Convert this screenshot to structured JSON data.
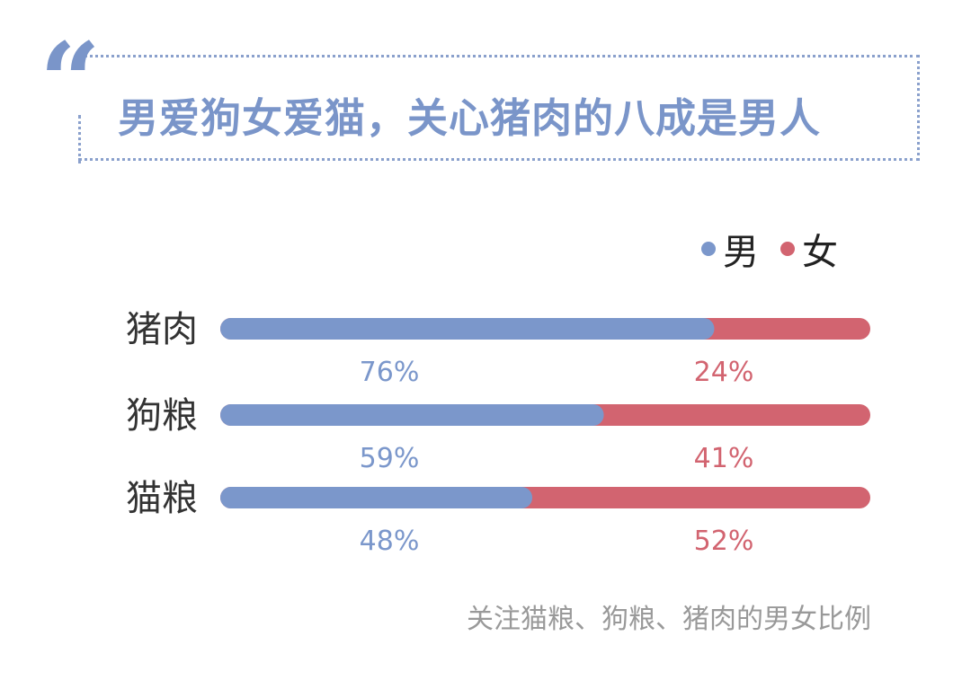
{
  "title": "男爱狗女爱猫，关心猪肉的八成是男人",
  "quote_mark": "“",
  "legend": [
    {
      "label": "男",
      "color": "#7b97cb"
    },
    {
      "label": "女",
      "color": "#d26470"
    }
  ],
  "footnote": "关注猫粮、狗粮、猪肉的男女比例",
  "chart_data": {
    "type": "bar",
    "stacked": true,
    "orientation": "horizontal",
    "categories": [
      "猪肉",
      "狗粮",
      "猫粮"
    ],
    "series": [
      {
        "name": "男",
        "values": [
          76,
          59,
          48
        ],
        "labels": [
          "76%",
          "59%",
          "48%"
        ],
        "color": "#7b97cb"
      },
      {
        "name": "女",
        "values": [
          24,
          41,
          52
        ],
        "labels": [
          "24%",
          "41%",
          "52%"
        ],
        "color": "#d26470"
      }
    ],
    "xlim": [
      0,
      100
    ],
    "grid": false,
    "legend_placement": "top-right"
  }
}
